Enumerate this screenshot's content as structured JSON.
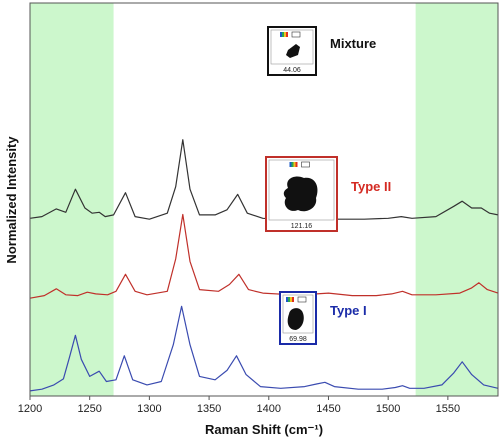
{
  "chart_data": {
    "type": "line",
    "xlabel": "Raman Shift (cm⁻¹)",
    "ylabel": "Normalized Intensity",
    "xlim": [
      1200,
      1592
    ],
    "xticks": [
      1200,
      1250,
      1300,
      1350,
      1400,
      1450,
      1500,
      1550
    ],
    "grid": false,
    "highlight_ranges": [
      [
        1200,
        1270
      ],
      [
        1523,
        1592
      ]
    ],
    "highlight_color": "#ccf7cc",
    "series": [
      {
        "name": "Mixture",
        "color": "#333333",
        "label_color": "#111111",
        "inset_value": "44.06",
        "baseline": 0.78,
        "points": [
          [
            1200,
            0.08
          ],
          [
            1210,
            0.1
          ],
          [
            1222,
            0.19
          ],
          [
            1230,
            0.15
          ],
          [
            1238,
            0.42
          ],
          [
            1246,
            0.2
          ],
          [
            1252,
            0.14
          ],
          [
            1258,
            0.15
          ],
          [
            1263,
            0.1
          ],
          [
            1270,
            0.12
          ],
          [
            1280,
            0.38
          ],
          [
            1288,
            0.1
          ],
          [
            1300,
            0.07
          ],
          [
            1315,
            0.14
          ],
          [
            1322,
            0.45
          ],
          [
            1328,
            1.0
          ],
          [
            1334,
            0.42
          ],
          [
            1342,
            0.12
          ],
          [
            1355,
            0.12
          ],
          [
            1365,
            0.18
          ],
          [
            1374,
            0.36
          ],
          [
            1382,
            0.14
          ],
          [
            1395,
            0.08
          ],
          [
            1420,
            0.06
          ],
          [
            1450,
            0.07
          ],
          [
            1480,
            0.07
          ],
          [
            1500,
            0.08
          ],
          [
            1511,
            0.1
          ],
          [
            1520,
            0.08
          ],
          [
            1540,
            0.1
          ],
          [
            1555,
            0.22
          ],
          [
            1562,
            0.28
          ],
          [
            1570,
            0.2
          ],
          [
            1578,
            0.2
          ],
          [
            1585,
            0.14
          ],
          [
            1592,
            0.12
          ]
        ]
      },
      {
        "name": "Type II",
        "color": "#c0302a",
        "label_color": "#d42a22",
        "inset_value": "121.16",
        "baseline": 0.43,
        "points": [
          [
            1200,
            0.02
          ],
          [
            1212,
            0.05
          ],
          [
            1222,
            0.13
          ],
          [
            1230,
            0.06
          ],
          [
            1240,
            0.05
          ],
          [
            1248,
            0.09
          ],
          [
            1255,
            0.07
          ],
          [
            1265,
            0.06
          ],
          [
            1272,
            0.1
          ],
          [
            1280,
            0.3
          ],
          [
            1288,
            0.1
          ],
          [
            1298,
            0.06
          ],
          [
            1315,
            0.1
          ],
          [
            1322,
            0.48
          ],
          [
            1328,
            1.0
          ],
          [
            1334,
            0.45
          ],
          [
            1342,
            0.12
          ],
          [
            1358,
            0.1
          ],
          [
            1367,
            0.18
          ],
          [
            1375,
            0.3
          ],
          [
            1383,
            0.12
          ],
          [
            1395,
            0.08
          ],
          [
            1420,
            0.06
          ],
          [
            1440,
            0.07
          ],
          [
            1450,
            0.08
          ],
          [
            1470,
            0.05
          ],
          [
            1490,
            0.05
          ],
          [
            1503,
            0.07
          ],
          [
            1512,
            0.1
          ],
          [
            1520,
            0.06
          ],
          [
            1540,
            0.06
          ],
          [
            1560,
            0.08
          ],
          [
            1570,
            0.14
          ],
          [
            1576,
            0.2
          ],
          [
            1583,
            0.12
          ],
          [
            1592,
            0.08
          ]
        ]
      },
      {
        "name": "Type I",
        "color": "#3a4bb0",
        "label_color": "#1a2ba8",
        "inset_value": "69.98",
        "baseline": 0.0,
        "points": [
          [
            1200,
            0.01
          ],
          [
            1210,
            0.03
          ],
          [
            1220,
            0.08
          ],
          [
            1228,
            0.15
          ],
          [
            1233,
            0.4
          ],
          [
            1238,
            0.66
          ],
          [
            1243,
            0.38
          ],
          [
            1250,
            0.18
          ],
          [
            1258,
            0.24
          ],
          [
            1264,
            0.12
          ],
          [
            1272,
            0.14
          ],
          [
            1279,
            0.42
          ],
          [
            1286,
            0.14
          ],
          [
            1298,
            0.08
          ],
          [
            1310,
            0.12
          ],
          [
            1320,
            0.55
          ],
          [
            1327,
            1.0
          ],
          [
            1334,
            0.55
          ],
          [
            1342,
            0.18
          ],
          [
            1355,
            0.14
          ],
          [
            1365,
            0.25
          ],
          [
            1373,
            0.42
          ],
          [
            1381,
            0.2
          ],
          [
            1393,
            0.06
          ],
          [
            1410,
            0.04
          ],
          [
            1430,
            0.06
          ],
          [
            1440,
            0.09
          ],
          [
            1447,
            0.11
          ],
          [
            1455,
            0.06
          ],
          [
            1475,
            0.03
          ],
          [
            1495,
            0.03
          ],
          [
            1506,
            0.05
          ],
          [
            1512,
            0.07
          ],
          [
            1518,
            0.04
          ],
          [
            1530,
            0.04
          ],
          [
            1545,
            0.08
          ],
          [
            1555,
            0.22
          ],
          [
            1562,
            0.35
          ],
          [
            1570,
            0.2
          ],
          [
            1580,
            0.08
          ],
          [
            1592,
            0.04
          ]
        ]
      }
    ]
  }
}
